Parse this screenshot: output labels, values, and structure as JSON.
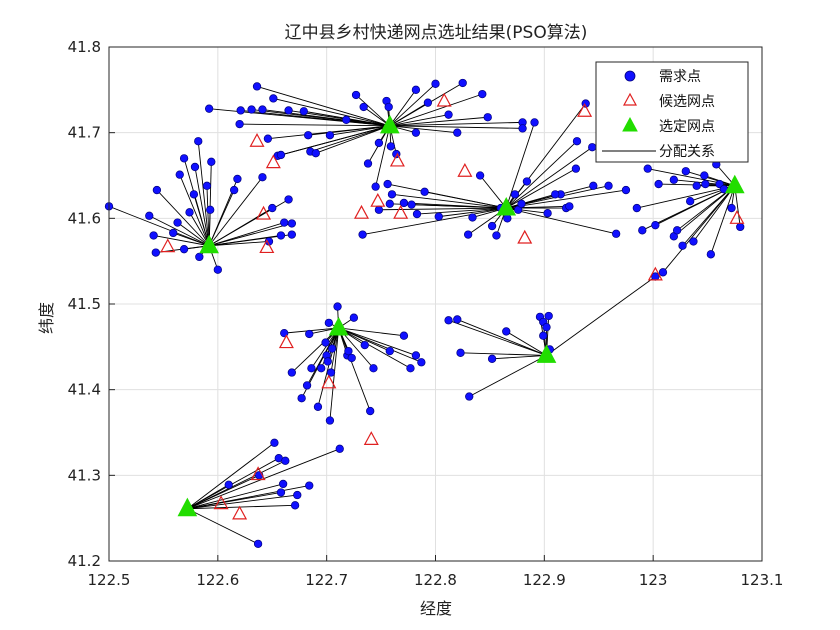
{
  "chart_data": {
    "type": "scatter",
    "title": "辽中县乡村快递网点选址结果(PSO算法)",
    "xlabel": "经度",
    "ylabel": "纬度",
    "xlim": [
      122.5,
      123.1
    ],
    "ylim": [
      41.2,
      41.8
    ],
    "xticks": [
      "122.5",
      "122.6",
      "122.7",
      "122.8",
      "122.9",
      "123",
      "123.1"
    ],
    "yticks": [
      "41.2",
      "41.3",
      "41.4",
      "41.5",
      "41.6",
      "41.7",
      "41.8"
    ],
    "grid": true,
    "legend_position": "top-right",
    "legend": [
      "需求点",
      "候选网点",
      "选定网点",
      "分配关系"
    ],
    "colors": {
      "demand": "#1010ff",
      "demand_edge": "#000080",
      "candidate": "#e02020",
      "selected": "#22dd00",
      "line": "#000000"
    },
    "selected_points": [
      {
        "x": 122.592,
        "y": 41.568
      },
      {
        "x": 122.758,
        "y": 41.708
      },
      {
        "x": 122.865,
        "y": 41.612
      },
      {
        "x": 123.075,
        "y": 41.638
      },
      {
        "x": 122.711,
        "y": 41.472
      },
      {
        "x": 122.902,
        "y": 41.44
      },
      {
        "x": 122.572,
        "y": 41.261
      }
    ],
    "candidate_points": [
      {
        "x": 122.554,
        "y": 41.567
      },
      {
        "x": 122.642,
        "y": 41.605
      },
      {
        "x": 122.645,
        "y": 41.566
      },
      {
        "x": 122.636,
        "y": 41.69
      },
      {
        "x": 122.651,
        "y": 41.665
      },
      {
        "x": 122.732,
        "y": 41.606
      },
      {
        "x": 122.747,
        "y": 41.62
      },
      {
        "x": 122.768,
        "y": 41.606
      },
      {
        "x": 122.765,
        "y": 41.667
      },
      {
        "x": 122.808,
        "y": 41.737
      },
      {
        "x": 122.827,
        "y": 41.655
      },
      {
        "x": 122.882,
        "y": 41.577
      },
      {
        "x": 122.937,
        "y": 41.725
      },
      {
        "x": 123.077,
        "y": 41.6
      },
      {
        "x": 123.002,
        "y": 41.534
      },
      {
        "x": 122.663,
        "y": 41.455
      },
      {
        "x": 122.702,
        "y": 41.408
      },
      {
        "x": 122.741,
        "y": 41.342
      },
      {
        "x": 122.603,
        "y": 41.267
      },
      {
        "x": 122.62,
        "y": 41.255
      },
      {
        "x": 122.637,
        "y": 41.301
      }
    ],
    "clusters": [
      {
        "center": 0,
        "points": [
          [
            122.5,
            41.614
          ],
          [
            122.537,
            41.603
          ],
          [
            122.541,
            41.58
          ],
          [
            122.543,
            41.56
          ],
          [
            122.544,
            41.633
          ],
          [
            122.559,
            41.583
          ],
          [
            122.563,
            41.595
          ],
          [
            122.565,
            41.651
          ],
          [
            122.569,
            41.67
          ],
          [
            122.574,
            41.607
          ],
          [
            122.578,
            41.628
          ],
          [
            122.579,
            41.66
          ],
          [
            122.582,
            41.69
          ],
          [
            122.583,
            41.555
          ],
          [
            122.59,
            41.638
          ],
          [
            122.593,
            41.61
          ],
          [
            122.594,
            41.666
          ],
          [
            122.6,
            41.54
          ],
          [
            122.615,
            41.633
          ],
          [
            122.618,
            41.646
          ],
          [
            122.641,
            41.648
          ],
          [
            122.647,
            41.573
          ],
          [
            122.65,
            41.612
          ],
          [
            122.658,
            41.58
          ],
          [
            122.661,
            41.595
          ],
          [
            122.665,
            41.622
          ],
          [
            122.668,
            41.594
          ],
          [
            122.668,
            41.581
          ],
          [
            122.569,
            41.564
          ]
        ]
      },
      {
        "center": 1,
        "points": [
          [
            122.592,
            41.728
          ],
          [
            122.62,
            41.71
          ],
          [
            122.621,
            41.726
          ],
          [
            122.631,
            41.727
          ],
          [
            122.636,
            41.754
          ],
          [
            122.641,
            41.727
          ],
          [
            122.646,
            41.693
          ],
          [
            122.651,
            41.74
          ],
          [
            122.655,
            41.673
          ],
          [
            122.658,
            41.674
          ],
          [
            122.665,
            41.726
          ],
          [
            122.679,
            41.725
          ],
          [
            122.683,
            41.697
          ],
          [
            122.685,
            41.678
          ],
          [
            122.69,
            41.676
          ],
          [
            122.703,
            41.697
          ],
          [
            122.718,
            41.715
          ],
          [
            122.727,
            41.744
          ],
          [
            122.734,
            41.73
          ],
          [
            122.738,
            41.664
          ],
          [
            122.745,
            41.637
          ],
          [
            122.748,
            41.688
          ],
          [
            122.755,
            41.737
          ],
          [
            122.759,
            41.684
          ],
          [
            122.764,
            41.675
          ],
          [
            122.782,
            41.75
          ],
          [
            122.793,
            41.735
          ],
          [
            122.8,
            41.757
          ],
          [
            122.812,
            41.721
          ],
          [
            122.82,
            41.7
          ],
          [
            122.825,
            41.758
          ],
          [
            122.843,
            41.745
          ],
          [
            122.848,
            41.718
          ],
          [
            122.88,
            41.712
          ],
          [
            122.88,
            41.705
          ],
          [
            122.757,
            41.73
          ],
          [
            122.782,
            41.7
          ]
        ]
      },
      {
        "center": 2,
        "points": [
          [
            122.733,
            41.581
          ],
          [
            122.748,
            41.61
          ],
          [
            122.756,
            41.64
          ],
          [
            122.758,
            41.617
          ],
          [
            122.76,
            41.628
          ],
          [
            122.771,
            41.618
          ],
          [
            122.778,
            41.616
          ],
          [
            122.783,
            41.605
          ],
          [
            122.79,
            41.631
          ],
          [
            122.803,
            41.602
          ],
          [
            122.83,
            41.581
          ],
          [
            122.834,
            41.601
          ],
          [
            122.841,
            41.65
          ],
          [
            122.852,
            41.591
          ],
          [
            122.856,
            41.58
          ],
          [
            122.86,
            41.612
          ],
          [
            122.866,
            41.6
          ],
          [
            122.873,
            41.628
          ],
          [
            122.876,
            41.61
          ],
          [
            122.879,
            41.617
          ],
          [
            122.884,
            41.643
          ],
          [
            122.891,
            41.712
          ],
          [
            122.903,
            41.606
          ],
          [
            122.915,
            41.628
          ],
          [
            122.92,
            41.612
          ],
          [
            122.923,
            41.614
          ],
          [
            122.929,
            41.658
          ],
          [
            122.938,
            41.734
          ],
          [
            122.944,
            41.683
          ],
          [
            122.959,
            41.638
          ],
          [
            122.966,
            41.582
          ],
          [
            122.975,
            41.633
          ],
          [
            122.945,
            41.638
          ],
          [
            122.93,
            41.69
          ],
          [
            122.91,
            41.628
          ]
        ]
      },
      {
        "center": 3,
        "points": [
          [
            122.985,
            41.612
          ],
          [
            122.99,
            41.586
          ],
          [
            122.995,
            41.658
          ],
          [
            123.002,
            41.592
          ],
          [
            123.005,
            41.64
          ],
          [
            123.009,
            41.537
          ],
          [
            123.019,
            41.579
          ],
          [
            123.019,
            41.645
          ],
          [
            123.027,
            41.568
          ],
          [
            123.03,
            41.655
          ],
          [
            123.034,
            41.62
          ],
          [
            123.037,
            41.573
          ],
          [
            123.04,
            41.638
          ],
          [
            123.047,
            41.65
          ],
          [
            123.053,
            41.558
          ],
          [
            123.058,
            41.663
          ],
          [
            123.061,
            41.64
          ],
          [
            123.072,
            41.612
          ],
          [
            123.08,
            41.59
          ],
          [
            123.048,
            41.64
          ],
          [
            123.065,
            41.634
          ],
          [
            123.022,
            41.586
          ]
        ]
      },
      {
        "center": 4,
        "points": [
          [
            122.661,
            41.466
          ],
          [
            122.668,
            41.42
          ],
          [
            122.677,
            41.39
          ],
          [
            122.682,
            41.405
          ],
          [
            122.684,
            41.465
          ],
          [
            122.686,
            41.425
          ],
          [
            122.692,
            41.38
          ],
          [
            122.695,
            41.425
          ],
          [
            122.699,
            41.455
          ],
          [
            122.7,
            41.44
          ],
          [
            122.701,
            41.433
          ],
          [
            122.702,
            41.478
          ],
          [
            122.703,
            41.364
          ],
          [
            122.704,
            41.42
          ],
          [
            122.71,
            41.497
          ],
          [
            122.719,
            41.44
          ],
          [
            122.72,
            41.445
          ],
          [
            122.723,
            41.437
          ],
          [
            122.725,
            41.484
          ],
          [
            122.735,
            41.452
          ],
          [
            122.74,
            41.375
          ],
          [
            122.743,
            41.425
          ],
          [
            122.758,
            41.445
          ],
          [
            122.771,
            41.463
          ],
          [
            122.777,
            41.425
          ],
          [
            122.782,
            41.44
          ],
          [
            122.787,
            41.432
          ],
          [
            122.705,
            41.448
          ]
        ]
      },
      {
        "center": 5,
        "points": [
          [
            122.812,
            41.481
          ],
          [
            122.82,
            41.482
          ],
          [
            122.823,
            41.443
          ],
          [
            122.831,
            41.392
          ],
          [
            122.852,
            41.436
          ],
          [
            122.865,
            41.468
          ],
          [
            122.896,
            41.485
          ],
          [
            122.899,
            41.479
          ],
          [
            122.902,
            41.473
          ],
          [
            122.904,
            41.486
          ],
          [
            122.899,
            41.463
          ],
          [
            123.002,
            41.532
          ],
          [
            122.905,
            41.447
          ]
        ]
      },
      {
        "center": 6,
        "points": [
          [
            122.61,
            41.289
          ],
          [
            122.637,
            41.22
          ],
          [
            122.638,
            41.3
          ],
          [
            122.652,
            41.338
          ],
          [
            122.656,
            41.32
          ],
          [
            122.658,
            41.28
          ],
          [
            122.66,
            41.29
          ],
          [
            122.662,
            41.317
          ],
          [
            122.671,
            41.265
          ],
          [
            122.673,
            41.277
          ],
          [
            122.684,
            41.288
          ],
          [
            122.712,
            41.331
          ]
        ]
      }
    ]
  }
}
